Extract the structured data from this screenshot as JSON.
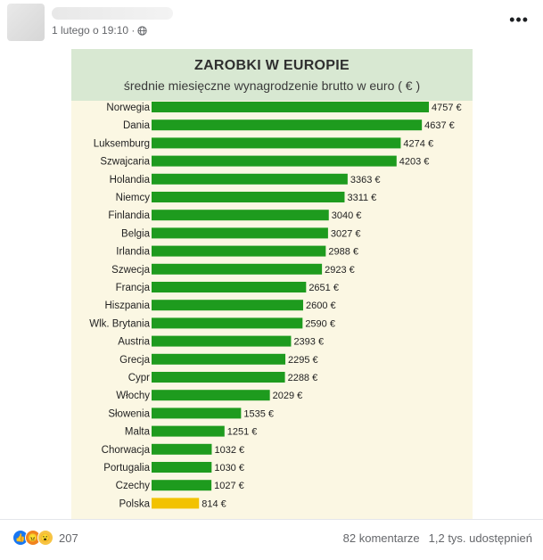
{
  "post": {
    "timestamp": "1 lutego o 19:10 ·",
    "more_label": "•••",
    "reactions_count": "207",
    "comments": "82 komentarze",
    "shares": "1,2 tys. udostępnień"
  },
  "icons": {
    "globe": "globe-icon",
    "more": "more-options-icon",
    "reactions": [
      "like-reaction-icon",
      "angry-reaction-icon",
      "wow-reaction-icon"
    ]
  },
  "chart_data": {
    "type": "bar",
    "orientation": "horizontal",
    "title": "ZAROBKI W EUROPIE",
    "subtitle": "średnie miesięczne wynagrodzenie brutto w euro ( € )",
    "categories": [
      "Norwegia",
      "Dania",
      "Luksemburg",
      "Szwajcaria",
      "Holandia",
      "Niemcy",
      "Finlandia",
      "Belgia",
      "Irlandia",
      "Szwecja",
      "Francja",
      "Hiszpania",
      "Wlk. Brytania",
      "Austria",
      "Grecja",
      "Cypr",
      "Włochy",
      "Słowenia",
      "Malta",
      "Chorwacja",
      "Portugalia",
      "Czechy",
      "Polska"
    ],
    "values": [
      4757,
      4637,
      4274,
      4203,
      3363,
      3311,
      3040,
      3027,
      2988,
      2923,
      2651,
      2600,
      2590,
      2393,
      2295,
      2288,
      2029,
      1535,
      1251,
      1032,
      1030,
      1027,
      814
    ],
    "value_labels": [
      "4757 €",
      "4637 €",
      "4274 €",
      "4203 €",
      "3363 €",
      "3311 €",
      "3040 €",
      "3027 €",
      "2988 €",
      "2923 €",
      "2651 €",
      "2600 €",
      "2590 €",
      "2393 €",
      "2295 €",
      "2288 €",
      "2029 €",
      "1535 €",
      "1251 €",
      "1032 €",
      "1030 €",
      "1027 €",
      "814 €"
    ],
    "bar_color": "#1e9b1e",
    "highlight_category": "Polska",
    "highlight_color": "#f2c200",
    "xlim": [
      0,
      4757
    ]
  }
}
